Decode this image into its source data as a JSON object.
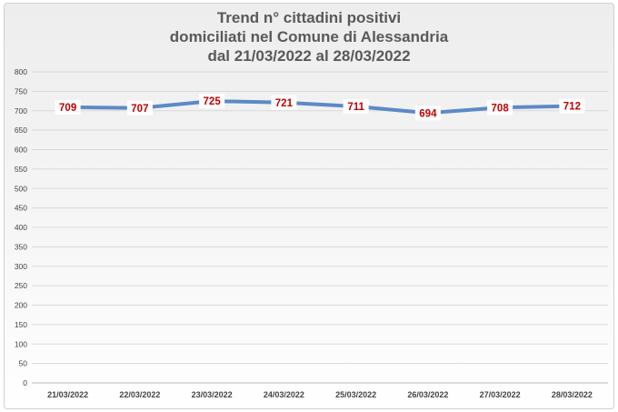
{
  "chart_data": {
    "type": "line",
    "title_lines": [
      "Trend n° cittadini positivi",
      "domiciliati nel Comune di Alessandria",
      "dal 21/03/2022 al 28/03/2022"
    ],
    "categories": [
      "21/03/2022",
      "22/03/2022",
      "23/03/2022",
      "24/03/2022",
      "25/03/2022",
      "26/03/2022",
      "27/03/2022",
      "28/03/2022"
    ],
    "series": [
      {
        "values": [
          709,
          707,
          725,
          721,
          711,
          694,
          708,
          712
        ],
        "color": "#5b8ac6"
      }
    ],
    "xlabel": "",
    "ylabel": "",
    "ylim": [
      0,
      800
    ],
    "ytick_step": 50,
    "grid": true,
    "legend": "none",
    "data_label_color": "#c00000"
  }
}
